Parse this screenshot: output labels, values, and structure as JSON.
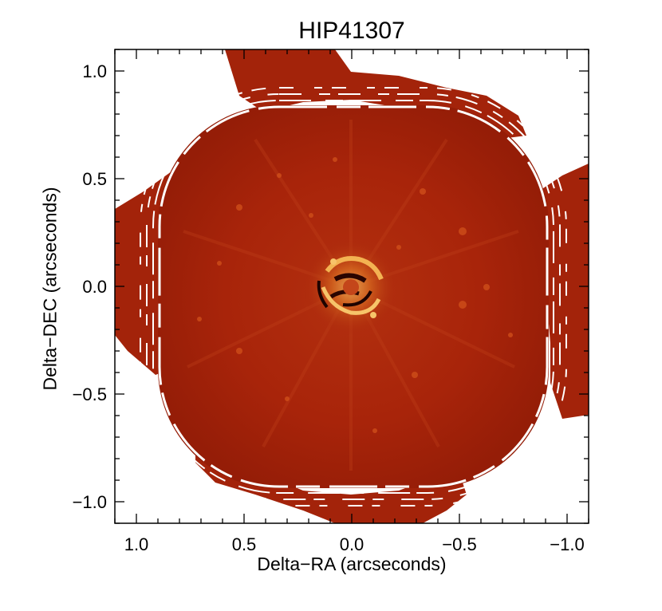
{
  "chart_data": {
    "type": "heatmap",
    "title": "HIP41307",
    "xlabel": "Delta−RA (arcseconds)",
    "ylabel": "Delta−DEC (arcseconds)",
    "x_reversed": true,
    "xlim": [
      1.1,
      -1.1
    ],
    "ylim": [
      -1.1,
      1.1
    ],
    "x_ticks": [
      {
        "value": 1.0,
        "label": "1.0"
      },
      {
        "value": 0.5,
        "label": "0.5"
      },
      {
        "value": 0.0,
        "label": "0.0"
      },
      {
        "value": -0.5,
        "label": "−0.5"
      },
      {
        "value": -1.0,
        "label": "−1.0"
      }
    ],
    "y_ticks": [
      {
        "value": 1.0,
        "label": "1.0"
      },
      {
        "value": 0.5,
        "label": "0.5"
      },
      {
        "value": 0.0,
        "label": "0.0"
      },
      {
        "value": -0.5,
        "label": "−0.5"
      },
      {
        "value": -1.0,
        "label": "−1.0"
      }
    ],
    "colormap": "red-temperature",
    "colors": {
      "field": "#a8240a",
      "field_dark": "#8a1a06",
      "speckle_bright": "#f2b050",
      "speckle_dark": "#2a0500",
      "background": "#ffffff"
    }
  }
}
